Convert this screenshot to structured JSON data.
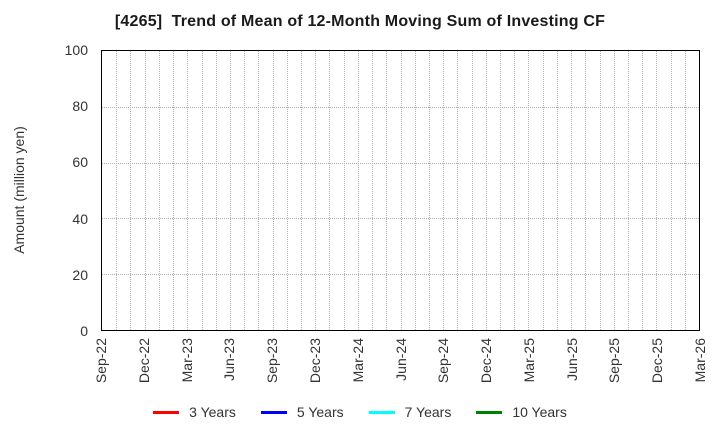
{
  "figure": {
    "title": "[4265]  Trend of Mean of 12-Month Moving Sum of Investing CF"
  },
  "y_axis": {
    "label": "Amount (million yen)",
    "ticks": [
      0,
      20,
      40,
      60,
      80,
      100
    ],
    "min": 0,
    "max": 100,
    "gridline_values": [
      20,
      40,
      60,
      80
    ]
  },
  "x_axis": {
    "tick_labels": [
      "Sep-22",
      "Dec-22",
      "Mar-23",
      "Jun-23",
      "Sep-23",
      "Dec-23",
      "Mar-24",
      "Jun-24",
      "Sep-24",
      "Dec-24",
      "Mar-25",
      "Jun-25",
      "Sep-25",
      "Dec-25",
      "Mar-26"
    ],
    "months_per_major_tick": 3
  },
  "legend": {
    "items": [
      {
        "label": "3 Years",
        "color": "#ff0000"
      },
      {
        "label": "5 Years",
        "color": "#0000ff"
      },
      {
        "label": "7 Years",
        "color": "#00ffff"
      },
      {
        "label": "10 Years",
        "color": "#008000"
      }
    ]
  },
  "chart_data": {
    "type": "line",
    "title": "[4265]  Trend of Mean of 12-Month Moving Sum of Investing CF",
    "xlabel": "",
    "ylabel": "Amount (million yen)",
    "ylim": [
      0,
      100
    ],
    "yticks": [
      0,
      20,
      40,
      60,
      80,
      100
    ],
    "x": [
      "Sep-22",
      "Dec-22",
      "Mar-23",
      "Jun-23",
      "Sep-23",
      "Dec-23",
      "Mar-24",
      "Jun-24",
      "Sep-24",
      "Dec-24",
      "Mar-25",
      "Jun-25",
      "Sep-25",
      "Dec-25",
      "Mar-26"
    ],
    "series": [
      {
        "name": "3 Years",
        "color": "#ff0000",
        "values": []
      },
      {
        "name": "5 Years",
        "color": "#0000ff",
        "values": []
      },
      {
        "name": "7 Years",
        "color": "#00ffff",
        "values": []
      },
      {
        "name": "10 Years",
        "color": "#008000",
        "values": []
      }
    ],
    "grid": true,
    "grid_style": "dotted",
    "x_minor_gridline_interval_months": 1,
    "legend_position": "bottom",
    "plotted": false
  }
}
